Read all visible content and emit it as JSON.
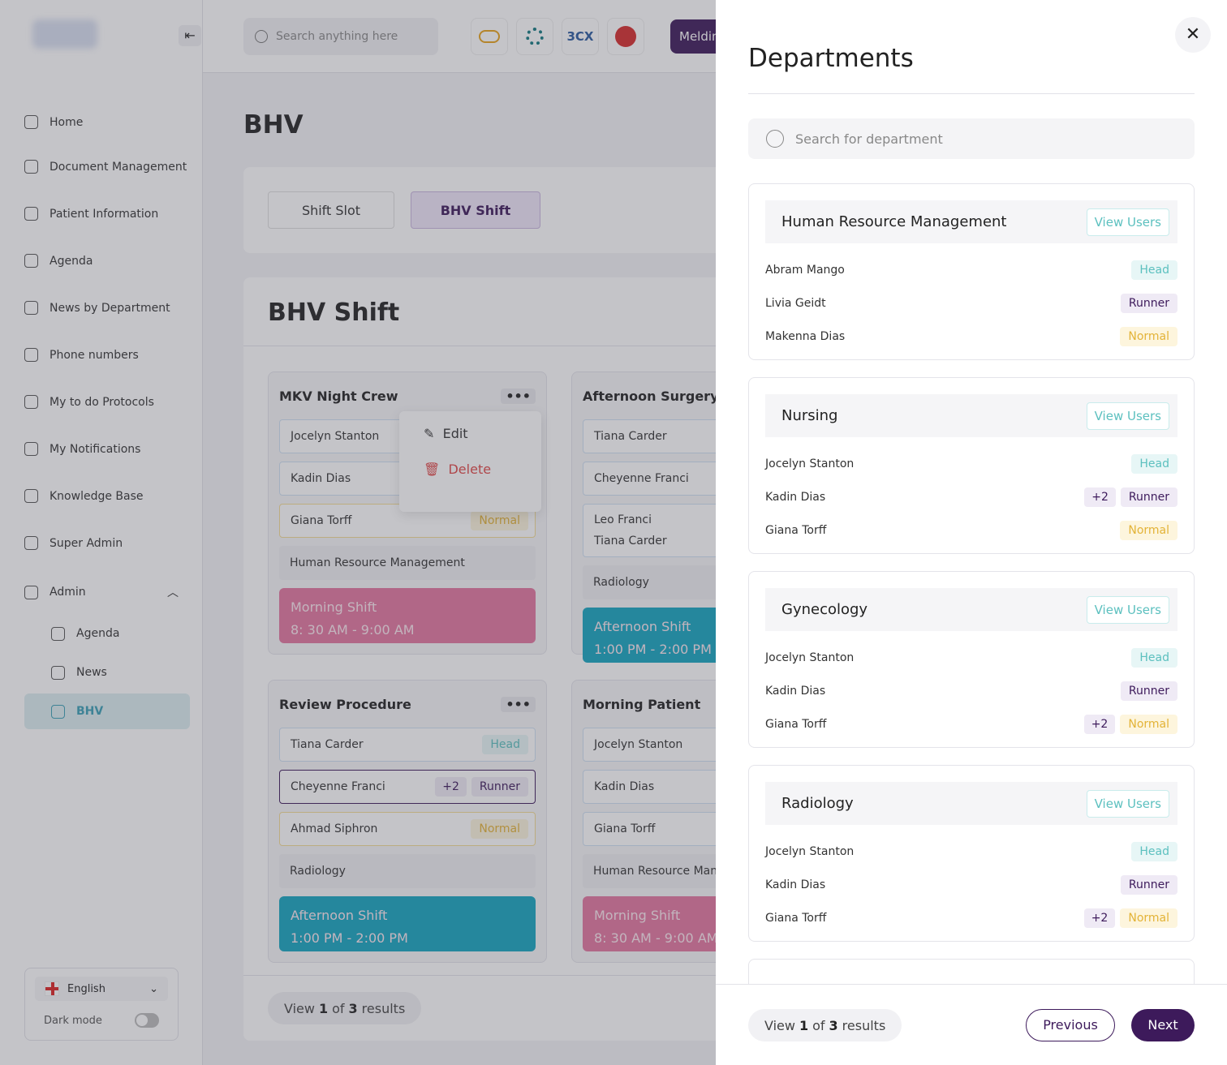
{
  "sidebar": {
    "nav": [
      "Home",
      "Document Management",
      "Patient Information",
      "Agenda",
      "News by Department",
      "Phone numbers",
      "My to do Protocols",
      "My Notifications",
      "Knowledge Base",
      "Super Admin"
    ],
    "admin": {
      "label": "Admin",
      "items": [
        "Agenda",
        "News",
        "BHV"
      ]
    },
    "language": "English",
    "dark_mode": "Dark mode"
  },
  "topbar": {
    "search_placeholder": "Search anything here",
    "apps": [
      "3CX"
    ],
    "user_button": "Meldin"
  },
  "page": {
    "title": "BHV",
    "tabs": [
      "Shift Slot",
      "BHV Shift"
    ],
    "section_title": "BHV Shift",
    "cards": [
      {
        "title": "MKV Night Crew",
        "members": [
          {
            "names": [
              "Jocelyn Stanton"
            ]
          },
          {
            "names": [
              "Kadin Dias"
            ]
          },
          {
            "names": [
              "Giana Torff"
            ],
            "role": "Normal"
          }
        ],
        "department": "Human Resource Management",
        "shift": {
          "name": "Morning Shift",
          "time": "8: 30 AM - 9:00 AM",
          "color": "#e4779f"
        }
      },
      {
        "title": "Afternoon Surgery",
        "members": [
          {
            "names": [
              "Tiana Carder"
            ]
          },
          {
            "names": [
              "Cheyenne Franci"
            ]
          },
          {
            "names": [
              "Leo Franci",
              "Tiana Carder"
            ]
          }
        ],
        "department": "Radiology",
        "shift": {
          "name": "Afternoon Shift",
          "time": "1:00 PM - 2:00 PM",
          "color": "#16a5c0"
        }
      },
      {
        "title": "Review Procedure",
        "members": [
          {
            "names": [
              "Tiana Carder"
            ],
            "role": "Head"
          },
          {
            "names": [
              "Cheyenne Franci"
            ],
            "role": "Runner",
            "extra": "+2"
          },
          {
            "names": [
              "Ahmad Siphron"
            ],
            "role": "Normal"
          }
        ],
        "department": "Radiology",
        "shift": {
          "name": "Afternoon Shift",
          "time": "1:00 PM - 2:00 PM",
          "color": "#16a5c0"
        }
      },
      {
        "title": "Morning Patient",
        "members": [
          {
            "names": [
              "Jocelyn Stanton"
            ]
          },
          {
            "names": [
              "Kadin Dias"
            ]
          },
          {
            "names": [
              "Giana Torff"
            ]
          }
        ],
        "department": "Human Resource Management",
        "shift": {
          "name": "Morning Shift",
          "time": "8: 30 AM - 9:00 AM",
          "color": "#e4779f"
        }
      }
    ],
    "menu": [
      "Edit",
      "Delete"
    ],
    "pagination": {
      "view": "View",
      "current": 1,
      "of": "of",
      "total": 3,
      "results": "results"
    }
  },
  "panel": {
    "title": "Departments",
    "search_placeholder": "Search for department",
    "button": "View Users",
    "departments": [
      {
        "name": "Human Resource Management",
        "members": [
          {
            "name": "Abram Mango",
            "role": "Head"
          },
          {
            "name": "Livia Geidt",
            "role": "Runner"
          },
          {
            "name": "Makenna Dias",
            "role": "Normal"
          }
        ]
      },
      {
        "name": "Nursing",
        "members": [
          {
            "name": "Jocelyn Stanton",
            "role": "Head"
          },
          {
            "name": "Kadin Dias",
            "role": "Runner",
            "extra": "+2"
          },
          {
            "name": "Giana Torff",
            "role": "Normal"
          }
        ]
      },
      {
        "name": "Gynecology",
        "members": [
          {
            "name": "Jocelyn Stanton",
            "role": "Head"
          },
          {
            "name": "Kadin Dias",
            "role": "Runner"
          },
          {
            "name": "Giana Torff",
            "role": "Normal",
            "extra": "+2"
          }
        ]
      },
      {
        "name": "Radiology",
        "members": [
          {
            "name": "Jocelyn Stanton",
            "role": "Head"
          },
          {
            "name": "Kadin Dias",
            "role": "Runner"
          },
          {
            "name": "Giana Torff",
            "role": "Normal",
            "extra": "+2"
          }
        ]
      }
    ],
    "pagination": {
      "view": "View",
      "current": 1,
      "of": "of",
      "total": 3,
      "results": "results"
    },
    "previous": "Previous",
    "next": "Next"
  }
}
